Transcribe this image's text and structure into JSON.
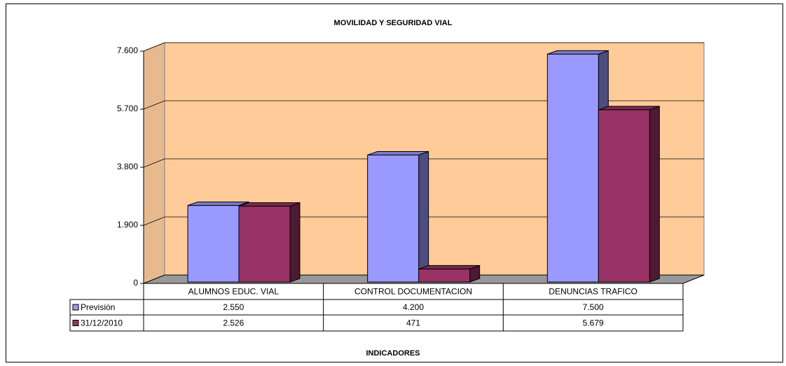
{
  "chart_data": {
    "type": "bar",
    "title": "MOVILIDAD Y SEGURIDAD VIAL",
    "x_label": "INDICADORES",
    "categories": [
      "ALUMNOS EDUC. VIAL",
      "CONTROL DOCUMENTACION",
      "DENUNCIAS TRAFICO"
    ],
    "series": [
      {
        "name": "Previsión",
        "color": "#9999ff",
        "values": [
          2550,
          4200,
          7500
        ],
        "value_labels": [
          "2.550",
          "4.200",
          "7.500"
        ]
      },
      {
        "name": "31/12/2010",
        "color": "#993366",
        "values": [
          2526,
          471,
          5679
        ],
        "value_labels": [
          "2.526",
          "471",
          "5.679"
        ]
      }
    ],
    "ylim": [
      0,
      7600
    ],
    "yticks": [
      0,
      {
        "value": 1900,
        "label": "1.900"
      },
      {
        "value": 3800,
        "label": "3.800"
      },
      {
        "value": 5700,
        "label": "5.700"
      },
      {
        "value": 7600,
        "label": "7.600"
      }
    ],
    "grid": true
  }
}
